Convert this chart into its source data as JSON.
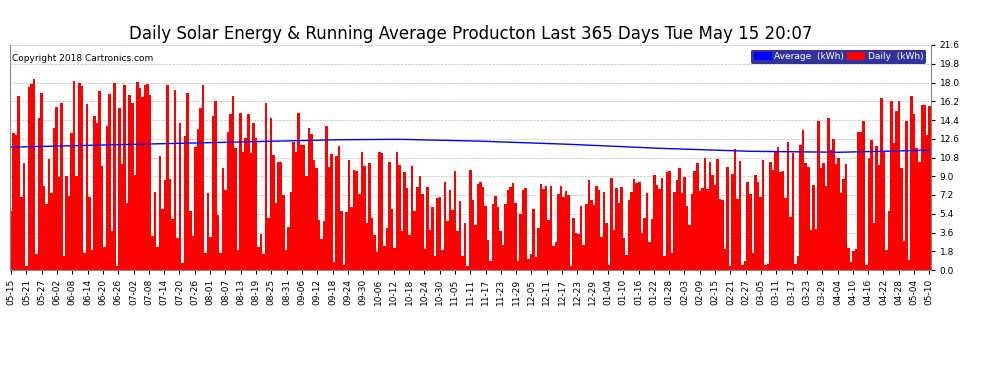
{
  "title": "Daily Solar Energy & Running Average Producton Last 365 Days Tue May 15 20:07",
  "copyright": "Copyright 2018 Cartronics.com",
  "bar_color": "#ff0000",
  "line_color": "#0000ff",
  "background_color": "#ffffff",
  "plot_bg_color": "#ffffff",
  "grid_color": "#bbbbbb",
  "ylim": [
    0.0,
    21.6
  ],
  "yticks": [
    0.0,
    1.8,
    3.6,
    5.4,
    7.2,
    9.0,
    10.8,
    12.6,
    14.4,
    16.2,
    18.0,
    19.8,
    21.6
  ],
  "legend_labels": [
    "Average  (kWh)",
    "Daily  (kWh)"
  ],
  "legend_colors": [
    "#0000ff",
    "#ff0000"
  ],
  "n_bars": 365,
  "x_tick_labels": [
    "05-15",
    "05-21",
    "05-27",
    "06-02",
    "06-08",
    "06-14",
    "06-20",
    "06-26",
    "07-02",
    "07-08",
    "07-14",
    "07-20",
    "07-26",
    "08-01",
    "08-07",
    "08-13",
    "08-19",
    "08-25",
    "08-31",
    "09-06",
    "09-12",
    "09-18",
    "09-24",
    "09-30",
    "10-06",
    "10-12",
    "10-18",
    "10-24",
    "10-30",
    "11-05",
    "11-11",
    "11-17",
    "11-23",
    "11-29",
    "12-05",
    "12-11",
    "12-17",
    "12-23",
    "12-29",
    "01-04",
    "01-10",
    "01-16",
    "01-22",
    "01-28",
    "02-03",
    "02-09",
    "02-15",
    "02-21",
    "02-27",
    "03-05",
    "03-11",
    "03-17",
    "03-23",
    "03-29",
    "04-04",
    "04-10",
    "04-16",
    "04-22",
    "04-28",
    "05-04",
    "05-10"
  ],
  "title_fontsize": 12,
  "tick_fontsize": 6.5,
  "copyright_fontsize": 6.5,
  "avg_control_x": [
    0.0,
    0.05,
    0.15,
    0.25,
    0.35,
    0.42,
    0.5,
    0.6,
    0.7,
    0.8,
    0.9,
    1.0
  ],
  "avg_control_y": [
    11.8,
    11.9,
    12.1,
    12.3,
    12.5,
    12.55,
    12.4,
    12.1,
    11.7,
    11.4,
    11.3,
    11.5
  ]
}
